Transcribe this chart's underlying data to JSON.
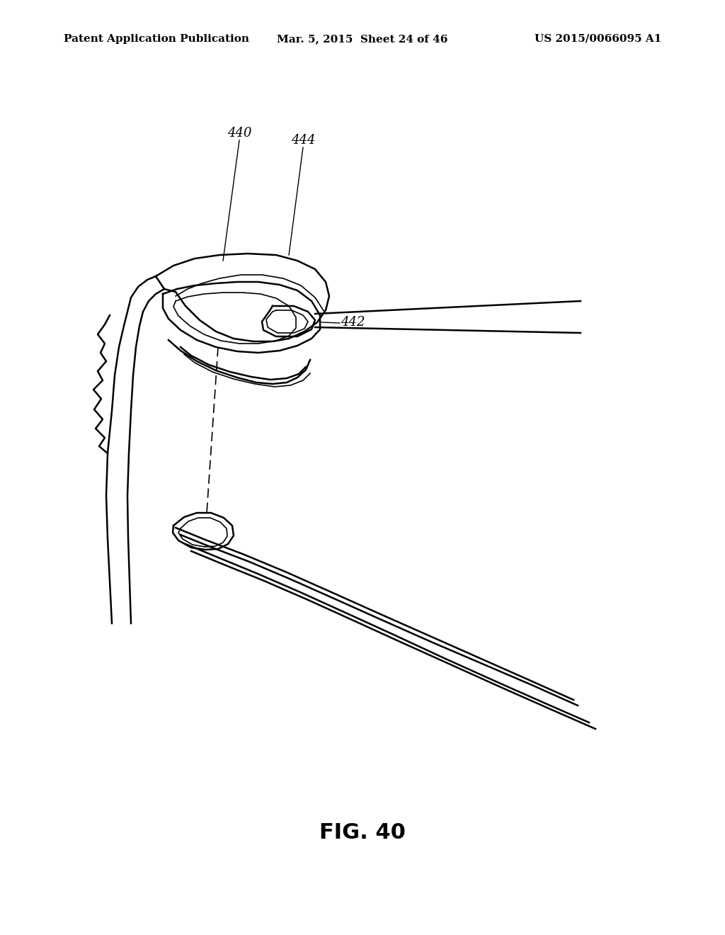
{
  "title": "FIG. 40",
  "header_left": "Patent Application Publication",
  "header_center": "Mar. 5, 2015  Sheet 24 of 46",
  "header_right": "US 2015/0066095 A1",
  "label_440": "440",
  "label_442": "442",
  "label_444": "444",
  "bg_color": "#ffffff",
  "line_color": "#000000",
  "header_fontsize": 11,
  "title_fontsize": 22,
  "label_fontsize": 13
}
